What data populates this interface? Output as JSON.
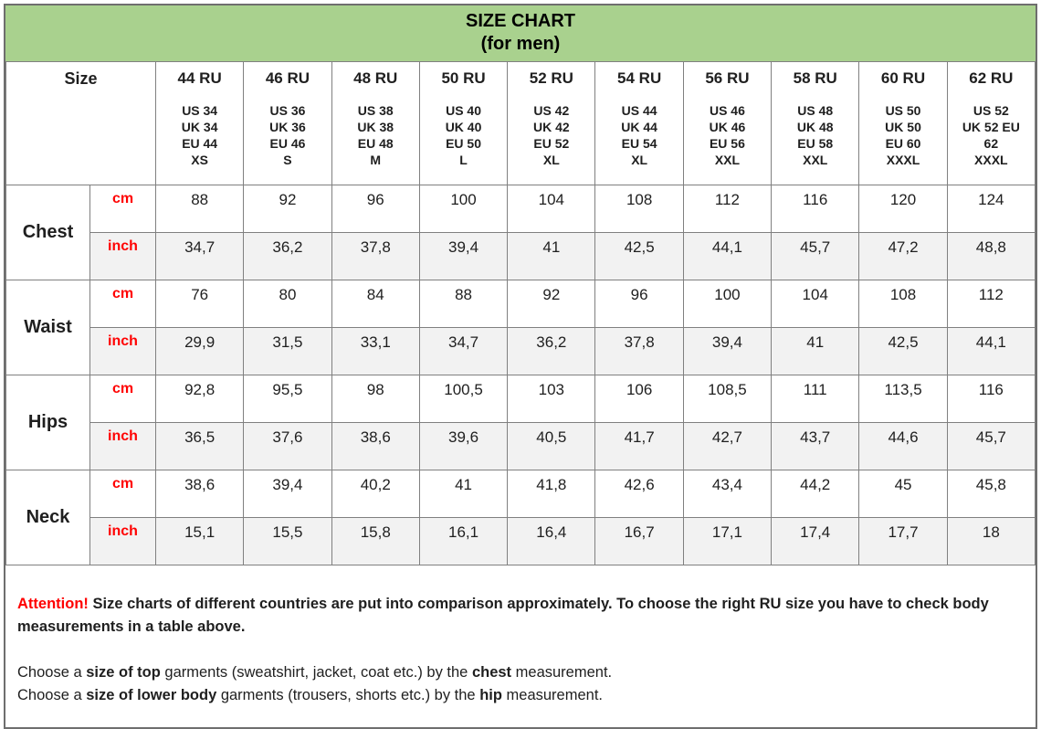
{
  "title": {
    "line1": "SIZE CHART",
    "line2": "(for men)"
  },
  "colors": {
    "header_green": "#A9D18E",
    "accent_red": "#FF0000",
    "alt_row_gray": "#F2F2F2",
    "border_gray": "#808080"
  },
  "chart_data": {
    "type": "table",
    "size_header": "Size",
    "columns": [
      {
        "ru": "44 RU",
        "details": [
          "US 34",
          "UK 34",
          "EU 44",
          "XS"
        ]
      },
      {
        "ru": "46 RU",
        "details": [
          "US 36",
          "UK 36",
          "EU 46",
          "S"
        ]
      },
      {
        "ru": "48 RU",
        "details": [
          "US 38",
          "UK 38",
          "EU 48",
          "M"
        ]
      },
      {
        "ru": "50 RU",
        "details": [
          "US 40",
          "UK 40",
          "EU 50",
          "L"
        ]
      },
      {
        "ru": "52 RU",
        "details": [
          "US 42",
          "UK 42",
          "EU 52",
          "XL"
        ]
      },
      {
        "ru": "54 RU",
        "details": [
          "US 44",
          "UK 44",
          "EU 54",
          "XL"
        ]
      },
      {
        "ru": "56 RU",
        "details": [
          "US 46",
          "UK 46",
          "EU 56",
          "XXL"
        ]
      },
      {
        "ru": "58 RU",
        "details": [
          "US 48",
          "UK 48",
          "EU 58",
          "XXL"
        ]
      },
      {
        "ru": "60 RU",
        "details": [
          "US 50",
          "UK 50",
          "EU 60",
          "XXXL"
        ]
      },
      {
        "ru": "62 RU",
        "details": [
          "US 52",
          "UK 52 EU",
          "62",
          "XXXL"
        ]
      }
    ],
    "rows": [
      {
        "category": "Chest",
        "units": [
          {
            "unit": "cm",
            "values": [
              "88",
              "92",
              "96",
              "100",
              "104",
              "108",
              "112",
              "116",
              "120",
              "124"
            ]
          },
          {
            "unit": "inch",
            "values": [
              "34,7",
              "36,2",
              "37,8",
              "39,4",
              "41",
              "42,5",
              "44,1",
              "45,7",
              "47,2",
              "48,8"
            ]
          }
        ]
      },
      {
        "category": "Waist",
        "units": [
          {
            "unit": "cm",
            "values": [
              "76",
              "80",
              "84",
              "88",
              "92",
              "96",
              "100",
              "104",
              "108",
              "112"
            ]
          },
          {
            "unit": "inch",
            "values": [
              "29,9",
              "31,5",
              "33,1",
              "34,7",
              "36,2",
              "37,8",
              "39,4",
              "41",
              "42,5",
              "44,1"
            ]
          }
        ]
      },
      {
        "category": "Hips",
        "units": [
          {
            "unit": "cm",
            "values": [
              "92,8",
              "95,5",
              "98",
              "100,5",
              "103",
              "106",
              "108,5",
              "111",
              "113,5",
              "116"
            ]
          },
          {
            "unit": "inch",
            "values": [
              "36,5",
              "37,6",
              "38,6",
              "39,6",
              "40,5",
              "41,7",
              "42,7",
              "43,7",
              "44,6",
              "45,7"
            ]
          }
        ]
      },
      {
        "category": "Neck",
        "units": [
          {
            "unit": "cm",
            "values": [
              "38,6",
              "39,4",
              "40,2",
              "41",
              "41,8",
              "42,6",
              "43,4",
              "44,2",
              "45",
              "45,8"
            ]
          },
          {
            "unit": "inch",
            "values": [
              "15,1",
              "15,5",
              "15,8",
              "16,1",
              "16,4",
              "16,7",
              "17,1",
              "17,4",
              "17,7",
              "18"
            ]
          }
        ]
      }
    ]
  },
  "footer": {
    "attention_label": "Attention!",
    "attention_text": " Size charts of different countries are put into comparison approximately. To choose the right RU size you have to check body measurements in a table above.",
    "choose_lines": [
      {
        "parts": [
          {
            "text": "Choose a ",
            "bold": false
          },
          {
            "text": "size of top",
            "bold": true
          },
          {
            "text": " garments (sweatshirt, jacket, coat etc.) by the ",
            "bold": false
          },
          {
            "text": "chest",
            "bold": true
          },
          {
            "text": " measurement.",
            "bold": false
          }
        ]
      },
      {
        "parts": [
          {
            "text": "Choose a ",
            "bold": false
          },
          {
            "text": "size of lower body",
            "bold": true
          },
          {
            "text": " garments (trousers, shorts etc.) by the ",
            "bold": false
          },
          {
            "text": "hip",
            "bold": true
          },
          {
            "text": " measurement.",
            "bold": false
          }
        ]
      }
    ]
  }
}
